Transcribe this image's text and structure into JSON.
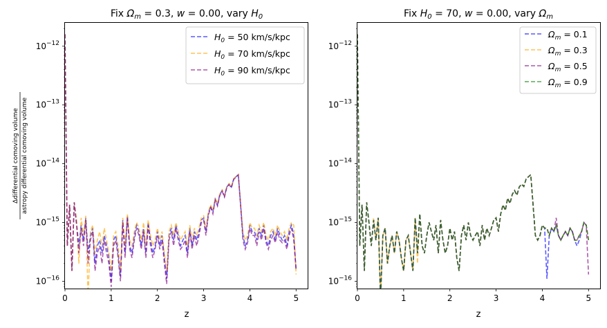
{
  "chart_data": [
    {
      "type": "line",
      "title": "Fix Ω_m = 0.3, w = 0.00, vary H_0",
      "title_parts": {
        "a": "Fix ",
        "b": "Ω",
        "c": "m",
        "d": " = 0.3, ",
        "e": "w",
        "f": " = 0.00, vary ",
        "g": "H",
        "h": "0"
      },
      "xlabel": "z",
      "ylabel_num": "Δdifferential comoving volume",
      "ylabel_den": "astropy differential comoving volume",
      "xlim": [
        0,
        5.25
      ],
      "ylim": [
        7.5e-17,
        2.5e-12
      ],
      "yscale": "log",
      "xticks": [
        0,
        1,
        2,
        3,
        4,
        5
      ],
      "xtick_labels": [
        "0",
        "1",
        "2",
        "3",
        "4",
        "5"
      ],
      "ytick_exponents": [
        -16,
        -15,
        -14,
        -13,
        -12
      ],
      "legend": "upper right",
      "legend_sym": "H",
      "legend_sub": "0",
      "series": [
        {
          "name": "H0 = 50 km/s/kpc",
          "legend_value": " = 50 km/s/kpc",
          "color": "#0000ff"
        },
        {
          "name": "H0 = 70 km/s/kpc",
          "legend_value": " = 70 km/s/kpc",
          "color": "#ffa500"
        },
        {
          "name": "H0 = 90 km/s/kpc",
          "legend_value": " = 90 km/s/kpc",
          "color": "#800080"
        }
      ],
      "x": [
        0.0,
        0.05,
        0.1,
        0.15,
        0.2,
        0.25,
        0.3,
        0.35,
        0.4,
        0.45,
        0.5,
        0.55,
        0.6,
        0.65,
        0.7,
        0.75,
        0.8,
        0.85,
        0.9,
        0.95,
        1.0,
        1.05,
        1.1,
        1.15,
        1.2,
        1.25,
        1.3,
        1.35,
        1.4,
        1.45,
        1.5,
        1.55,
        1.6,
        1.65,
        1.7,
        1.75,
        1.8,
        1.85,
        1.9,
        1.95,
        2.0,
        2.05,
        2.1,
        2.15,
        2.2,
        2.25,
        2.3,
        2.35,
        2.4,
        2.45,
        2.5,
        2.55,
        2.6,
        2.65,
        2.7,
        2.75,
        2.8,
        2.85,
        2.9,
        2.95,
        3.0,
        3.05,
        3.1,
        3.15,
        3.2,
        3.25,
        3.3,
        3.35,
        3.4,
        3.45,
        3.5,
        3.55,
        3.6,
        3.65,
        3.7,
        3.75,
        3.8,
        3.85,
        3.9,
        3.95,
        4.0,
        4.05,
        4.1,
        4.15,
        4.2,
        4.25,
        4.3,
        4.35,
        4.4,
        4.45,
        4.5,
        4.55,
        4.6,
        4.65,
        4.7,
        4.75,
        4.8,
        4.85,
        4.9,
        4.95,
        5.0
      ],
      "values": [
        [
          1.6e-12,
          4e-16,
          2e-15,
          1.5e-16,
          2.2e-15,
          1e-15,
          4e-16,
          9e-16,
          5e-16,
          1.2e-15,
          3e-16,
          6e-16,
          8e-16,
          2e-16,
          4e-16,
          5e-16,
          3e-16,
          6e-16,
          4e-16,
          2.5e-16,
          1e-16,
          5e-16,
          6e-16,
          3e-16,
          1.2e-16,
          1.1e-15,
          3e-16,
          1.3e-15,
          4e-16,
          3e-16,
          6e-16,
          9e-16,
          7e-16,
          4e-16,
          8e-16,
          3e-16,
          1e-15,
          5e-16,
          3e-16,
          4e-16,
          7e-16,
          4e-16,
          6e-16,
          2.5e-16,
          1.1e-16,
          6e-16,
          8e-16,
          5e-16,
          9e-16,
          6e-16,
          4e-16,
          5e-16,
          6e-16,
          3e-16,
          8e-16,
          4e-16,
          7e-16,
          5e-16,
          7e-16,
          1.1e-15,
          1.2e-15,
          7e-16,
          1.4e-15,
          1.9e-15,
          1.5e-15,
          2.5e-15,
          2e-15,
          3e-15,
          3.5e-15,
          2.8e-15,
          4e-15,
          4.5e-15,
          4e-15,
          5.5e-15,
          6e-15,
          6.5e-15,
          2e-15,
          6e-16,
          4e-16,
          5e-16,
          9e-16,
          7e-16,
          7e-16,
          5e-16,
          8e-16,
          6e-16,
          9e-16,
          5e-16,
          4e-16,
          6e-16,
          7e-16,
          5e-16,
          8e-16,
          6e-16,
          5e-16,
          6e-16,
          4e-16,
          7e-16,
          9e-16,
          6e-16,
          1.5e-16
        ],
        [
          1.6e-12,
          4e-16,
          2e-15,
          1.5e-16,
          2.2e-15,
          1.1e-15,
          2e-16,
          1.2e-15,
          6e-16,
          1.3e-15,
          5e-17,
          7e-16,
          9e-16,
          3e-16,
          5e-16,
          7e-16,
          4e-16,
          8e-16,
          5e-16,
          3e-16,
          1.5e-16,
          6e-16,
          7e-16,
          4e-16,
          1.5e-16,
          1.2e-15,
          4e-16,
          1.4e-15,
          5e-16,
          4e-16,
          7e-16,
          1e-15,
          8e-16,
          5e-16,
          1e-15,
          4e-16,
          1.1e-15,
          6e-16,
          4e-16,
          5e-16,
          8e-16,
          5e-16,
          7e-16,
          3e-16,
          1.5e-16,
          7e-16,
          9e-16,
          6e-16,
          1e-15,
          7e-16,
          5e-16,
          6e-16,
          7e-16,
          4e-16,
          9e-16,
          5e-16,
          8e-16,
          6e-16,
          8e-16,
          1.2e-15,
          1.3e-15,
          8e-16,
          1.5e-15,
          2e-15,
          1.6e-15,
          2.6e-15,
          2.1e-15,
          3.1e-15,
          3.6e-15,
          2.9e-15,
          4.1e-15,
          4.6e-15,
          4.1e-15,
          5.6e-15,
          6.1e-15,
          6.6e-15,
          2.1e-15,
          7e-16,
          5e-16,
          6e-16,
          1e-15,
          8e-16,
          8e-16,
          6e-16,
          9e-16,
          7e-16,
          1e-15,
          6e-16,
          5e-16,
          7e-16,
          8e-16,
          6e-16,
          9e-16,
          7e-16,
          6e-16,
          7e-16,
          5e-16,
          8e-16,
          1e-15,
          9e-16,
          1.3e-16
        ],
        [
          1.6e-12,
          4e-16,
          2e-15,
          1.5e-16,
          2.2e-15,
          9e-16,
          3e-16,
          8e-16,
          4e-16,
          1.1e-15,
          2e-16,
          5e-16,
          7e-16,
          1.5e-16,
          3e-16,
          4e-16,
          2e-16,
          5e-16,
          3e-16,
          2e-16,
          8e-17,
          4e-16,
          5e-16,
          2.5e-16,
          1e-16,
          1e-15,
          2.5e-16,
          1.2e-15,
          3.5e-16,
          2.5e-16,
          5e-16,
          8e-16,
          6e-16,
          3.5e-16,
          7e-16,
          2.5e-16,
          9e-16,
          4e-16,
          2.5e-16,
          3.5e-16,
          6e-16,
          3.5e-16,
          5e-16,
          2e-16,
          9e-17,
          5e-16,
          7e-16,
          4e-16,
          8e-16,
          5e-16,
          3.5e-16,
          4e-16,
          5e-16,
          2.5e-16,
          7e-16,
          3.5e-16,
          6e-16,
          4e-16,
          6e-16,
          1e-15,
          1.1e-15,
          6e-16,
          1.3e-15,
          1.8e-15,
          1.4e-15,
          2.4e-15,
          1.9e-15,
          2.9e-15,
          3.4e-15,
          2.7e-15,
          3.9e-15,
          4.4e-15,
          3.9e-15,
          5.4e-15,
          5.9e-15,
          6.4e-15,
          1.9e-15,
          5e-16,
          3.5e-16,
          4.5e-16,
          8e-16,
          6e-16,
          6e-16,
          4e-16,
          7e-16,
          5e-16,
          8e-16,
          4.5e-16,
          3.5e-16,
          5e-16,
          6e-16,
          4.5e-16,
          7e-16,
          5e-16,
          4.5e-16,
          5e-16,
          3.5e-16,
          6e-16,
          8e-16,
          5e-16,
          1.6e-16
        ]
      ]
    },
    {
      "type": "line",
      "title": "Fix H_0 = 70, w = 0.00, vary Ω_m",
      "title_parts": {
        "a": "Fix ",
        "b": "H",
        "c": "0",
        "d": " = 70, ",
        "e": "w",
        "f": " = 0.00, vary ",
        "g": "Ω",
        "h": "m"
      },
      "xlabel": "z",
      "xlim": [
        0,
        5.25
      ],
      "ylim": [
        7.5e-17,
        2.5e-12
      ],
      "yscale": "log",
      "xticks": [
        0,
        1,
        2,
        3,
        4,
        5
      ],
      "xtick_labels": [
        "0",
        "1",
        "2",
        "3",
        "4",
        "5"
      ],
      "ytick_exponents": [
        -16,
        -15,
        -14,
        -13,
        -12
      ],
      "legend": "upper right",
      "legend_sym": "Ω",
      "legend_sub": "m",
      "series": [
        {
          "name": "Ωm = 0.1",
          "legend_value": " = 0.1",
          "color": "#0000ff"
        },
        {
          "name": "Ωm = 0.3",
          "legend_value": " = 0.3",
          "color": "#ffa500"
        },
        {
          "name": "Ωm = 0.5",
          "legend_value": " = 0.5",
          "color": "#800080"
        },
        {
          "name": "Ωm = 0.9",
          "legend_value": " = 0.9",
          "color": "#008000"
        }
      ],
      "x": [
        0.0,
        0.05,
        0.1,
        0.15,
        0.2,
        0.25,
        0.3,
        0.35,
        0.4,
        0.45,
        0.5,
        0.55,
        0.6,
        0.65,
        0.7,
        0.75,
        0.8,
        0.85,
        0.9,
        0.95,
        1.0,
        1.05,
        1.1,
        1.15,
        1.2,
        1.25,
        1.3,
        1.35,
        1.4,
        1.45,
        1.5,
        1.55,
        1.6,
        1.65,
        1.7,
        1.75,
        1.8,
        1.85,
        1.9,
        1.95,
        2.0,
        2.05,
        2.1,
        2.15,
        2.2,
        2.25,
        2.3,
        2.35,
        2.4,
        2.45,
        2.5,
        2.55,
        2.6,
        2.65,
        2.7,
        2.75,
        2.8,
        2.85,
        2.9,
        2.95,
        3.0,
        3.05,
        3.1,
        3.15,
        3.2,
        3.25,
        3.3,
        3.35,
        3.4,
        3.45,
        3.5,
        3.55,
        3.6,
        3.65,
        3.7,
        3.75,
        3.8,
        3.85,
        3.9,
        3.95,
        4.0,
        4.05,
        4.1,
        4.15,
        4.2,
        4.25,
        4.3,
        4.35,
        4.4,
        4.45,
        4.5,
        4.55,
        4.6,
        4.65,
        4.7,
        4.75,
        4.8,
        4.85,
        4.9,
        4.95,
        5.0
      ],
      "values": [
        [
          1.6e-12,
          4e-16,
          2e-15,
          1.5e-16,
          2.2e-15,
          1e-15,
          4e-16,
          1.1e-15,
          5e-16,
          1.2e-15,
          5e-17,
          6e-16,
          8e-16,
          2e-16,
          4e-16,
          6e-16,
          3e-16,
          7e-16,
          5e-16,
          2.5e-16,
          1.5e-16,
          5e-16,
          6e-16,
          3e-16,
          1.5e-16,
          1.2e-15,
          3e-16,
          1.4e-15,
          4e-16,
          3e-16,
          6e-16,
          1e-15,
          7e-16,
          5e-16,
          9e-16,
          3e-16,
          1.1e-15,
          5e-16,
          3e-16,
          4e-16,
          8e-16,
          5e-16,
          7e-16,
          2.5e-16,
          1.5e-16,
          6e-16,
          9e-16,
          5e-16,
          1e-15,
          6e-16,
          5e-16,
          6e-16,
          7e-16,
          4e-16,
          9e-16,
          5e-16,
          8e-16,
          6e-16,
          8e-16,
          1.1e-15,
          1.2e-15,
          7e-16,
          1.4e-15,
          2e-15,
          1.6e-15,
          2.6e-15,
          2.1e-15,
          3e-15,
          3.5e-15,
          2.9e-15,
          4e-15,
          4.5e-15,
          4.1e-15,
          5.5e-15,
          6e-15,
          6.5e-15,
          2e-15,
          6e-16,
          5e-16,
          6e-16,
          9e-16,
          8e-16,
          1.1e-16,
          6e-16,
          8e-16,
          7e-16,
          9e-16,
          6e-16,
          5e-16,
          6e-16,
          7e-16,
          6e-16,
          8e-16,
          7e-16,
          5e-16,
          4e-16,
          5e-16,
          7e-16,
          1e-15,
          9e-16,
          5e-16
        ],
        [
          1.6e-12,
          4e-16,
          2e-15,
          1.5e-16,
          2.2e-15,
          1e-15,
          4e-16,
          1.2e-15,
          5e-16,
          1.2e-15,
          5e-17,
          6e-16,
          8e-16,
          2e-16,
          4e-16,
          6e-16,
          3e-16,
          7e-16,
          5e-16,
          2.5e-16,
          1.5e-16,
          5e-16,
          6e-16,
          3e-16,
          1.5e-16,
          1.2e-15,
          2e-16,
          1.4e-15,
          4e-16,
          3e-16,
          6e-16,
          1e-15,
          7e-16,
          5e-16,
          9e-16,
          3e-16,
          1.1e-15,
          5e-16,
          3e-16,
          4e-16,
          8e-16,
          5e-16,
          7e-16,
          2.5e-16,
          1.5e-16,
          6e-16,
          9e-16,
          5e-16,
          1e-15,
          6e-16,
          5e-16,
          6e-16,
          7e-16,
          4e-16,
          9e-16,
          5e-16,
          8e-16,
          6e-16,
          8e-16,
          1.1e-15,
          1.2e-15,
          7e-16,
          1.4e-15,
          2e-15,
          1.6e-15,
          2.6e-15,
          2.1e-15,
          3e-15,
          3.5e-15,
          2.9e-15,
          4e-15,
          4.5e-15,
          4.1e-15,
          5.5e-15,
          6e-15,
          6.5e-15,
          2e-15,
          6e-16,
          5e-16,
          6e-16,
          9e-16,
          8e-16,
          8e-16,
          6e-16,
          8e-16,
          7e-16,
          9e-16,
          6e-16,
          5e-16,
          6e-16,
          7e-16,
          6e-16,
          8e-16,
          7e-16,
          5e-16,
          5e-16,
          6e-16,
          7e-16,
          1e-15,
          9e-16,
          5e-16
        ],
        [
          1.6e-12,
          4e-16,
          2e-15,
          1.5e-16,
          2.2e-15,
          1e-15,
          4e-16,
          1.1e-15,
          5e-16,
          1.2e-15,
          5e-17,
          6e-16,
          8e-16,
          2e-16,
          4e-16,
          6e-16,
          3e-16,
          7e-16,
          5e-16,
          2.5e-16,
          1.5e-16,
          5e-16,
          6e-16,
          3e-16,
          1.5e-16,
          1.2e-15,
          3e-16,
          1.4e-15,
          4e-16,
          3e-16,
          6e-16,
          1e-15,
          7e-16,
          5e-16,
          9e-16,
          3e-16,
          1.1e-15,
          5e-16,
          3e-16,
          4e-16,
          8e-16,
          5e-16,
          7e-16,
          2.5e-16,
          1.5e-16,
          6e-16,
          9e-16,
          5e-16,
          1e-15,
          6e-16,
          5e-16,
          6e-16,
          7e-16,
          4e-16,
          9e-16,
          5e-16,
          8e-16,
          6e-16,
          8e-16,
          1.1e-15,
          1.2e-15,
          7e-16,
          1.4e-15,
          2e-15,
          1.6e-15,
          2.6e-15,
          2.1e-15,
          3e-15,
          3.5e-15,
          2.9e-15,
          4e-15,
          4.5e-15,
          4.1e-15,
          5.5e-15,
          6e-15,
          6.5e-15,
          2e-15,
          6e-16,
          5e-16,
          6e-16,
          9e-16,
          8e-16,
          8e-16,
          6e-16,
          8e-16,
          7e-16,
          1.2e-15,
          6e-16,
          5e-16,
          6e-16,
          7e-16,
          6e-16,
          8e-16,
          7e-16,
          5e-16,
          5e-16,
          6e-16,
          7e-16,
          1e-15,
          9e-16,
          1.3e-16
        ],
        [
          1.6e-12,
          4e-16,
          2e-15,
          1.5e-16,
          2.2e-15,
          1e-15,
          4e-16,
          1.1e-15,
          5e-16,
          1.2e-15,
          5e-17,
          6e-16,
          8e-16,
          2e-16,
          4e-16,
          6e-16,
          3e-16,
          7e-16,
          5e-16,
          2.5e-16,
          1.5e-16,
          5e-16,
          6e-16,
          3e-16,
          1.5e-16,
          1.2e-15,
          3e-16,
          1.4e-15,
          4e-16,
          3e-16,
          6e-16,
          1e-15,
          7e-16,
          5e-16,
          9e-16,
          3e-16,
          1.1e-15,
          5e-16,
          3e-16,
          4e-16,
          8e-16,
          5e-16,
          7e-16,
          2.5e-16,
          1.5e-16,
          6e-16,
          9e-16,
          5e-16,
          1e-15,
          6e-16,
          5e-16,
          6e-16,
          7e-16,
          4e-16,
          9e-16,
          5e-16,
          8e-16,
          6e-16,
          8e-16,
          1.1e-15,
          1.2e-15,
          7e-16,
          1.4e-15,
          2e-15,
          1.6e-15,
          2.6e-15,
          2.1e-15,
          3e-15,
          3.5e-15,
          2.9e-15,
          4e-15,
          4.5e-15,
          4.1e-15,
          5.5e-15,
          6e-15,
          6.5e-15,
          2e-15,
          6e-16,
          5e-16,
          6e-16,
          9e-16,
          8e-16,
          8e-16,
          6e-16,
          8e-16,
          7e-16,
          9e-16,
          6e-16,
          5e-16,
          6e-16,
          7e-16,
          6e-16,
          8e-16,
          7e-16,
          5e-16,
          5e-16,
          6e-16,
          7e-16,
          1e-15,
          9e-16,
          5e-16
        ]
      ]
    }
  ]
}
